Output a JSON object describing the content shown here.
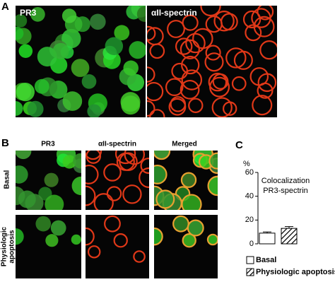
{
  "panel_a": {
    "label": "A",
    "images": [
      "PR3",
      "αII-spectrin"
    ]
  },
  "panel_b": {
    "label": "B",
    "columns": [
      "PR3",
      "αII-spectrin",
      "Merged"
    ],
    "rows": [
      [
        "Basal"
      ],
      [
        "Physiologic",
        "apoptosis"
      ]
    ]
  },
  "panel_c": {
    "label": "C",
    "chart_data": {
      "type": "bar",
      "title": [
        "Colocalization",
        "PR3-spectrin"
      ],
      "y_label": "%",
      "categories": [
        "Basal",
        "Physiologic apoptosis"
      ],
      "values": [
        9,
        13
      ],
      "errors": [
        1,
        1.5
      ],
      "patterns": [
        "none",
        "hatch"
      ],
      "ylim": [
        0,
        60
      ],
      "yticks": [
        0,
        20,
        40,
        60
      ]
    }
  }
}
